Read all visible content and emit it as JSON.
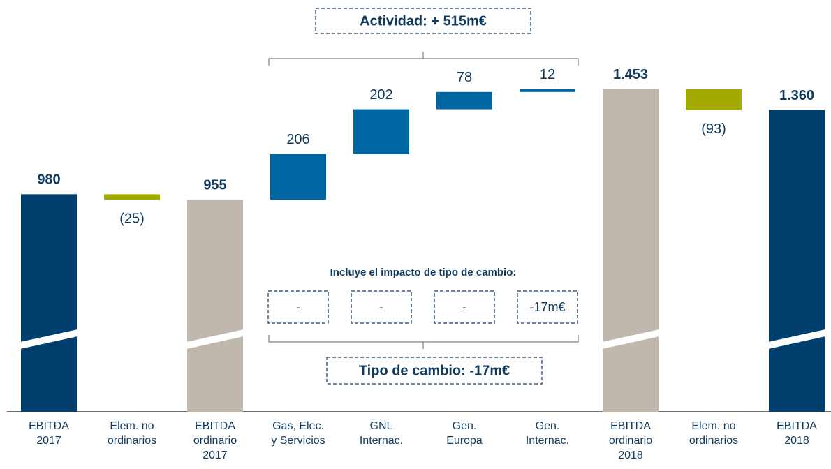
{
  "chart_data": {
    "type": "waterfall",
    "categories": [
      [
        "EBITDA",
        "2017"
      ],
      [
        "Elem. no",
        "ordinarios"
      ],
      [
        "EBITDA",
        "ordinario",
        "2017"
      ],
      [
        "Gas, Elec.",
        "y Servicios"
      ],
      [
        "GNL",
        "Internac."
      ],
      [
        "Gen.",
        "Europa"
      ],
      [
        "Gen.",
        "Internac."
      ],
      [
        "EBITDA",
        "ordinario",
        "2018"
      ],
      [
        "Elem. no",
        "ordinarios"
      ],
      [
        "EBITDA",
        "2018"
      ]
    ],
    "values": [
      980,
      -25,
      955,
      206,
      202,
      78,
      12,
      1453,
      -93,
      1360
    ],
    "value_labels": [
      "980",
      "(25)",
      "955",
      "206",
      "202",
      "78",
      "12",
      "1.453",
      "(93)",
      "1.360"
    ],
    "measure": [
      "absolute",
      "relative",
      "absolute",
      "relative",
      "relative",
      "relative",
      "relative",
      "absolute",
      "relative",
      "absolute"
    ],
    "colors": [
      "#003f6e",
      "#a3ab00",
      "#c0b8ad",
      "#0066a1",
      "#0066a1",
      "#0066a1",
      "#0066a1",
      "#c0b8ad",
      "#a3ab00",
      "#003f6e"
    ],
    "ylim": [
      0,
      1500
    ],
    "annotations": {
      "activity": "Actividad: + 515m€",
      "fx_note": "Incluye el impacto de tipo de cambio:",
      "fx_boxes": [
        "-",
        "-",
        "-",
        "-17m€"
      ],
      "fx_total": "Tipo de cambio: -17m€"
    }
  }
}
